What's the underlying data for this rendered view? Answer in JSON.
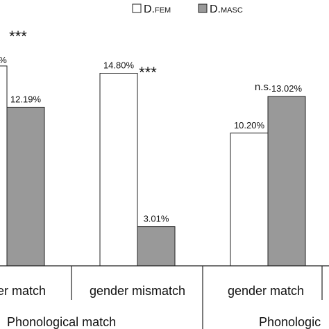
{
  "chart_data": {
    "type": "bar",
    "legend": {
      "placement": "top-right",
      "entries": [
        {
          "prefix": "D.",
          "name": "FEM",
          "color": "#ffffff"
        },
        {
          "prefix": "D.",
          "name": "MASC",
          "color": "#999999"
        }
      ]
    },
    "groups": [
      {
        "category": "gender match",
        "category_shown": "er match",
        "values": [
          null,
          12.19
        ],
        "labels": [
          "%",
          "12.19%"
        ],
        "significance": "***"
      },
      {
        "category": "gender mismatch",
        "category_shown": "gender mismatch",
        "values": [
          14.8,
          3.01
        ],
        "labels": [
          "14.80%",
          "3.01%"
        ],
        "significance": "***"
      },
      {
        "category": "gender match",
        "category_shown": "gender match",
        "values": [
          10.2,
          13.02
        ],
        "labels": [
          "10.20%",
          "13.02%"
        ],
        "significance": "n.s."
      }
    ],
    "supergroups": [
      "Phonological match",
      "Phonologic"
    ],
    "ylim": [
      0,
      20
    ],
    "grid": false,
    "title": "",
    "xlabel": "",
    "ylabel": ""
  }
}
